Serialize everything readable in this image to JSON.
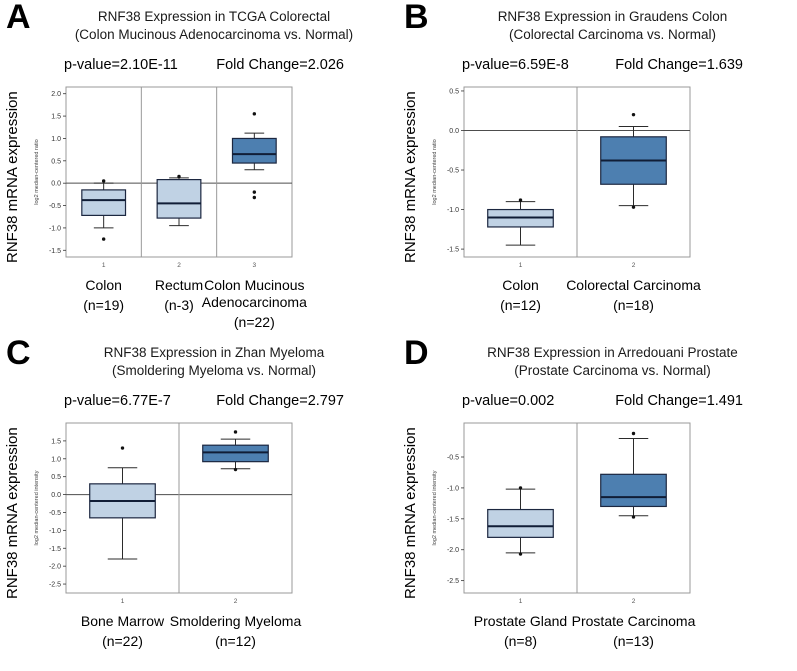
{
  "colors": {
    "normal_box": "#c0d2e4",
    "tumor_box": "#4d7fb0",
    "box_border": "#1c2740",
    "median_line": "#101d36",
    "whisker": "#2b2b2b",
    "plot_border": "#999999",
    "zero_line": "#4d4d4d",
    "outlier": "#111111",
    "tick_text": "#333333",
    "x_tick_text": "#555555",
    "plot_bg": "#ffffff"
  },
  "chart_data": [
    {
      "panel": "A",
      "type": "boxplot",
      "title": "RNF38 Expression in TCGA Colorectal",
      "subtitle": "(Colon Mucinous Adenocarcinoma vs. Normal)",
      "p_value": "p-value=2.10E-11",
      "fold_change": "Fold Change=2.026",
      "ylabel": "RNF38 mRNA expression",
      "ylabel_small": "log2 median-centered ratio",
      "ylim": [
        -1.65,
        2.15
      ],
      "yticks": [
        2.0,
        1.5,
        1.0,
        0.5,
        0.0,
        -0.5,
        -1.0,
        -1.5
      ],
      "groups": [
        {
          "name": "Colon",
          "n_label": "(n=19)",
          "x_tick": "1",
          "box": "normal",
          "whisker_low": -1.0,
          "q1": -0.72,
          "median": -0.38,
          "q3": -0.15,
          "whisker_high": 0.0,
          "outliers": [
            0.05,
            -1.25
          ]
        },
        {
          "name": "Rectum",
          "n_label": "(n-3)",
          "x_tick": "2",
          "box": "normal",
          "whisker_low": -0.95,
          "q1": -0.78,
          "median": -0.45,
          "q3": 0.08,
          "whisker_high": 0.12,
          "outliers": [
            0.15
          ]
        },
        {
          "name": "Colon Mucinous Adenocarcinoma",
          "n_label": "(n=22)",
          "x_tick": "3",
          "box": "tumor",
          "whisker_low": 0.3,
          "q1": 0.45,
          "median": 0.65,
          "q3": 1.0,
          "whisker_high": 1.12,
          "outliers": [
            1.55,
            -0.2,
            -0.32
          ]
        }
      ]
    },
    {
      "panel": "B",
      "type": "boxplot",
      "title": "RNF38 Expression in Graudens Colon",
      "subtitle": "(Colorectal Carcinoma vs. Normal)",
      "p_value": "p-value=6.59E-8",
      "fold_change": "Fold Change=1.639",
      "ylabel": "RNF38 mRNA expression",
      "ylabel_small": "log2 median-centered ratio",
      "ylim": [
        -1.6,
        0.55
      ],
      "yticks": [
        0.5,
        0.0,
        -0.5,
        -1.0,
        -1.5
      ],
      "groups": [
        {
          "name": "Colon",
          "n_label": "(n=12)",
          "x_tick": "1",
          "box": "normal",
          "whisker_low": -1.45,
          "q1": -1.22,
          "median": -1.1,
          "q3": -1.0,
          "whisker_high": -0.9,
          "outliers": [
            -0.88
          ]
        },
        {
          "name": "Colorectal Carcinoma",
          "n_label": "(n=18)",
          "x_tick": "2",
          "box": "tumor",
          "whisker_low": -0.95,
          "q1": -0.68,
          "median": -0.38,
          "q3": -0.08,
          "whisker_high": 0.05,
          "outliers": [
            0.2,
            -0.97
          ]
        }
      ]
    },
    {
      "panel": "C",
      "type": "boxplot",
      "title": "RNF38 Expression in Zhan Myeloma",
      "subtitle": "(Smoldering Myeloma vs. Normal)",
      "p_value": "p-value=6.77E-7",
      "fold_change": "Fold Change=2.797",
      "ylabel": "RNF38 mRNA expression",
      "ylabel_small": "log2 median-centered intensity",
      "ylim": [
        -2.75,
        2.0
      ],
      "yticks": [
        1.5,
        1.0,
        0.5,
        0.0,
        -0.5,
        -1.0,
        -1.5,
        -2.0,
        -2.5
      ],
      "groups": [
        {
          "name": "Bone Marrow",
          "n_label": "(n=22)",
          "x_tick": "1",
          "box": "normal",
          "whisker_low": -1.8,
          "q1": -0.65,
          "median": -0.18,
          "q3": 0.3,
          "whisker_high": 0.75,
          "outliers": [
            1.3
          ]
        },
        {
          "name": "Smoldering Myeloma",
          "n_label": "(n=12)",
          "x_tick": "2",
          "box": "tumor",
          "whisker_low": 0.72,
          "q1": 0.92,
          "median": 1.18,
          "q3": 1.38,
          "whisker_high": 1.55,
          "outliers": [
            1.75,
            0.7
          ]
        }
      ]
    },
    {
      "panel": "D",
      "type": "boxplot",
      "title": "RNF38 Expression in Arredouani Prostate",
      "subtitle": "(Prostate Carcinoma vs. Normal)",
      "p_value": "p-value=0.002",
      "fold_change": "Fold Change=1.491",
      "ylabel": "RNF38 mRNA expression",
      "ylabel_small": "log2 median-centered intensity",
      "ylim": [
        -2.7,
        0.05
      ],
      "yticks": [
        -0.5,
        -1.0,
        -1.5,
        -2.0,
        -2.5
      ],
      "groups": [
        {
          "name": "Prostate Gland",
          "n_label": "(n=8)",
          "x_tick": "1",
          "box": "normal",
          "whisker_low": -2.05,
          "q1": -1.8,
          "median": -1.62,
          "q3": -1.35,
          "whisker_high": -1.02,
          "outliers": [
            -1.0,
            -2.07
          ]
        },
        {
          "name": "Prostate Carcinoma",
          "n_label": "(n=13)",
          "x_tick": "2",
          "box": "tumor",
          "whisker_low": -1.45,
          "q1": -1.3,
          "median": -1.15,
          "q3": -0.78,
          "whisker_high": -0.2,
          "outliers": [
            -0.12,
            -1.47
          ]
        }
      ]
    }
  ]
}
